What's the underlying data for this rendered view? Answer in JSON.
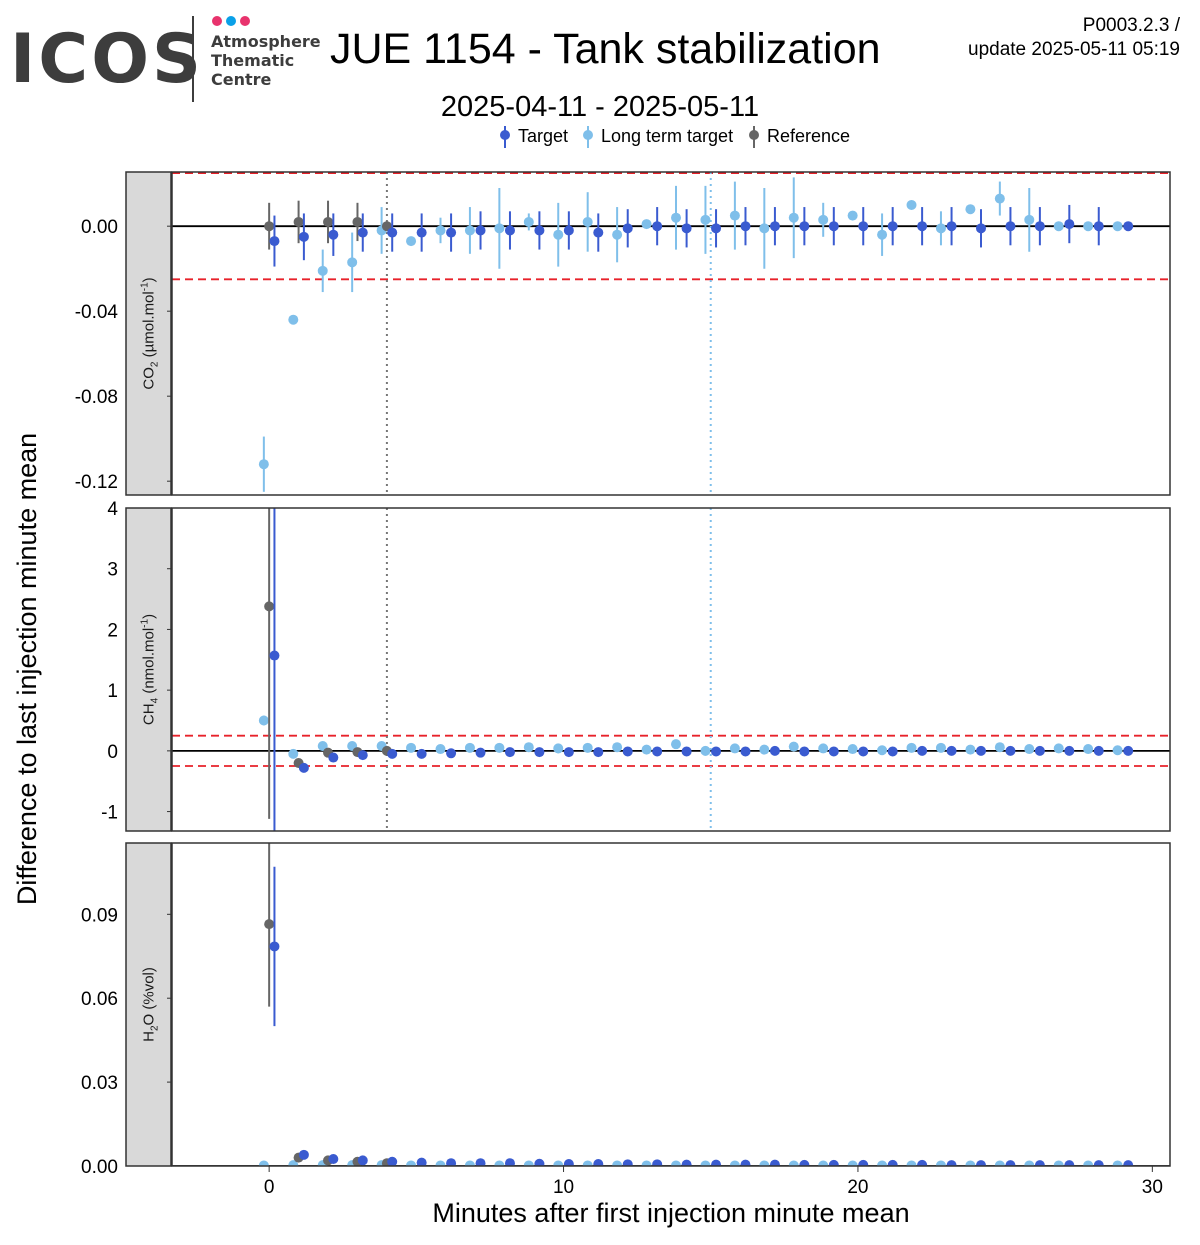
{
  "header": {
    "logo_text": "ICOS",
    "logo_line1": "Atmosphere",
    "logo_line2": "Thematic",
    "logo_line3": "Centre",
    "logo_dot_colors": [
      "#e8336d",
      "#0aa0e8",
      "#e8336d"
    ],
    "title": "JUE 1154 - Tank stabilization",
    "version": "P0003.2.3 /",
    "update": "update  2025-05-11 05:19",
    "date_range": "2025-04-11 - 2025-05-11"
  },
  "chart_data": {
    "type": "scatter",
    "xlabel": "Minutes after first injection minute mean",
    "ylabel": "Difference to last injection minute mean",
    "xlim": [
      -3.3,
      30.6
    ],
    "x_ticks": [
      0,
      10,
      20,
      30
    ],
    "x_tick_labels": [
      "0",
      "10",
      "20",
      "30"
    ],
    "legend": {
      "placement": "top-center",
      "entries": [
        {
          "label": "Target",
          "color": "#3a5bd0"
        },
        {
          "label": "Long term target",
          "color": "#7fbfea"
        },
        {
          "label": "Reference",
          "color": "#666666"
        }
      ]
    },
    "vlines": [
      {
        "x": 4,
        "color": "#777777",
        "style": "dotted"
      },
      {
        "x": 15,
        "color": "#7fbfea",
        "style": "dotted"
      }
    ],
    "panels": [
      {
        "strip_label": "CO2 (µmol.mol-1)",
        "strip_main": "CO",
        "strip_sub": "2",
        "strip_rest": " (µmol.mol",
        "strip_sup": "-1",
        "strip_end": ")",
        "ylim": [
          -0.1265,
          0.0255
        ],
        "y_ticks": [
          0.0,
          -0.04,
          -0.08,
          -0.12
        ],
        "y_tick_labels": [
          "0.00",
          "-0.04",
          "-0.08",
          "-0.12"
        ],
        "hlines": [
          0.025,
          -0.025
        ],
        "series": [
          {
            "name": "Target",
            "color": "#3a5bd0",
            "x": [
              0,
              1,
              2,
              3,
              4,
              5,
              6,
              7,
              8,
              9,
              10,
              11,
              12,
              13,
              14,
              15,
              16,
              17,
              18,
              19,
              20,
              21,
              22,
              23,
              24,
              25,
              26,
              27,
              28,
              29
            ],
            "y": [
              -0.007,
              -0.005,
              -0.004,
              -0.003,
              -0.003,
              -0.003,
              -0.003,
              -0.002,
              -0.002,
              -0.002,
              -0.002,
              -0.003,
              -0.001,
              0.0,
              -0.001,
              -0.001,
              0.0,
              0.0,
              0.0,
              0.0,
              0.0,
              0.0,
              0.0,
              0.0,
              -0.001,
              0.0,
              0.0,
              0.001,
              0.0,
              0.0
            ],
            "err": [
              0.012,
              0.011,
              0.01,
              0.009,
              0.009,
              0.009,
              0.009,
              0.009,
              0.009,
              0.009,
              0.009,
              0.009,
              0.009,
              0.009,
              0.009,
              0.009,
              0.009,
              0.009,
              0.009,
              0.009,
              0.009,
              0.009,
              0.009,
              0.009,
              0.009,
              0.009,
              0.009,
              0.009,
              0.009,
              0.0
            ]
          },
          {
            "name": "Long term target",
            "color": "#7fbfea",
            "x": [
              0,
              1,
              2,
              3,
              4,
              5,
              6,
              7,
              8,
              9,
              10,
              11,
              12,
              13,
              14,
              15,
              16,
              17,
              18,
              19,
              20,
              21,
              22,
              23,
              24,
              25,
              26,
              27,
              28,
              29
            ],
            "y": [
              -0.112,
              -0.044,
              -0.021,
              -0.017,
              -0.002,
              -0.007,
              -0.002,
              -0.002,
              -0.001,
              0.002,
              -0.004,
              0.002,
              -0.004,
              0.001,
              0.004,
              0.003,
              0.005,
              -0.001,
              0.004,
              0.003,
              0.005,
              -0.004,
              0.01,
              -0.001,
              0.008,
              0.013,
              0.003,
              0.0,
              0.0,
              0.0
            ],
            "err": [
              0.013,
              0.0,
              0.01,
              0.014,
              0.011,
              0.0,
              0.006,
              0.011,
              0.019,
              0.004,
              0.015,
              0.014,
              0.013,
              0.0,
              0.015,
              0.016,
              0.016,
              0.019,
              0.019,
              0.008,
              0.0,
              0.01,
              0.0,
              0.008,
              0.0,
              0.008,
              0.015,
              0.0,
              0.0,
              0.0
            ]
          },
          {
            "name": "Reference",
            "color": "#666666",
            "x": [
              0,
              1,
              2,
              3,
              4
            ],
            "y": [
              0.0,
              0.002,
              0.002,
              0.002,
              0.0
            ],
            "err": [
              0.011,
              0.01,
              0.01,
              0.009,
              0.0
            ]
          }
        ]
      },
      {
        "strip_label": "CH4 (nmol.mol-1)",
        "strip_main": "CH",
        "strip_sub": "4",
        "strip_rest": " (nmol.mol",
        "strip_sup": "-1",
        "strip_end": ")",
        "ylim": [
          -1.32,
          4.0
        ],
        "y_ticks": [
          4,
          3,
          2,
          1,
          0,
          -1
        ],
        "y_tick_labels": [
          "4",
          "3",
          "2",
          "1",
          "0",
          "-1"
        ],
        "hlines": [
          0.25,
          -0.25
        ],
        "series": [
          {
            "name": "Target",
            "color": "#3a5bd0",
            "x": [
              0,
              1,
              2,
              3,
              4,
              5,
              6,
              7,
              8,
              9,
              10,
              11,
              12,
              13,
              14,
              15,
              16,
              17,
              18,
              19,
              20,
              21,
              22,
              23,
              24,
              25,
              26,
              27,
              28,
              29
            ],
            "y": [
              1.57,
              -0.28,
              -0.11,
              -0.07,
              -0.05,
              -0.05,
              -0.04,
              -0.03,
              -0.02,
              -0.02,
              -0.02,
              -0.02,
              -0.01,
              -0.01,
              -0.01,
              -0.01,
              -0.01,
              0.0,
              -0.01,
              -0.01,
              -0.01,
              -0.01,
              0.0,
              0.0,
              0.0,
              0.0,
              0.0,
              0.0,
              0.0,
              0.0
            ],
            "err": [
              2.9,
              0.05,
              0.05,
              0.05,
              0.05,
              0.05,
              0.05,
              0.05,
              0.05,
              0.05,
              0.05,
              0.05,
              0.05,
              0.05,
              0.05,
              0.05,
              0.05,
              0.05,
              0.05,
              0.05,
              0.05,
              0.05,
              0.05,
              0.05,
              0.05,
              0.05,
              0.05,
              0.05,
              0.05,
              0.0
            ]
          },
          {
            "name": "Long term target",
            "color": "#7fbfea",
            "x": [
              0,
              1,
              2,
              3,
              4,
              5,
              6,
              7,
              8,
              9,
              10,
              11,
              12,
              13,
              14,
              15,
              16,
              17,
              18,
              19,
              20,
              21,
              22,
              23,
              24,
              25,
              26,
              27,
              28,
              29
            ],
            "y": [
              0.5,
              -0.05,
              0.08,
              0.08,
              0.08,
              0.05,
              0.03,
              0.05,
              0.05,
              0.06,
              0.04,
              0.05,
              0.06,
              0.02,
              0.11,
              0.0,
              0.04,
              0.02,
              0.07,
              0.04,
              0.03,
              0.01,
              0.05,
              0.05,
              0.02,
              0.06,
              0.03,
              0.04,
              0.03,
              0.01
            ],
            "err": [
              0.08,
              0.06,
              0.05,
              0.05,
              0.05,
              0.05,
              0.05,
              0.05,
              0.05,
              0.05,
              0.08,
              0.05,
              0.05,
              0.05,
              0.05,
              0.08,
              0.05,
              0.05,
              0.05,
              0.05,
              0.05,
              0.05,
              0.05,
              0.05,
              0.05,
              0.05,
              0.05,
              0.05,
              0.05,
              0.0
            ]
          },
          {
            "name": "Reference",
            "color": "#666666",
            "x": [
              0,
              1,
              2,
              3,
              4
            ],
            "y": [
              2.38,
              -0.2,
              -0.03,
              -0.02,
              0.0
            ],
            "err": [
              3.5,
              0.05,
              0.05,
              0.05,
              0.0
            ]
          }
        ]
      },
      {
        "strip_label": "H2O (%vol)",
        "strip_main": "H",
        "strip_sub": "2",
        "strip_rest": "O (%vol)",
        "strip_sup": "",
        "strip_end": "",
        "ylim": [
          0.0,
          0.1155
        ],
        "y_ticks": [
          0.09,
          0.06,
          0.03,
          0.0
        ],
        "y_tick_labels": [
          "0.09",
          "0.06",
          "0.03",
          "0.00"
        ],
        "hlines": [],
        "series": [
          {
            "name": "Target",
            "color": "#3a5bd0",
            "x": [
              0,
              1,
              2,
              3,
              4,
              5,
              6,
              7,
              8,
              9,
              10,
              11,
              12,
              13,
              14,
              15,
              16,
              17,
              18,
              19,
              20,
              21,
              22,
              23,
              24,
              25,
              26,
              27,
              28,
              29
            ],
            "y": [
              0.0785,
              0.004,
              0.0025,
              0.002,
              0.0015,
              0.0012,
              0.001,
              0.001,
              0.001,
              0.0008,
              0.0007,
              0.0007,
              0.0006,
              0.0006,
              0.0005,
              0.0005,
              0.0005,
              0.0005,
              0.0004,
              0.0004,
              0.0004,
              0.0004,
              0.0004,
              0.0003,
              0.0003,
              0.0003,
              0.0003,
              0.0003,
              0.0003,
              0.0003
            ],
            "err": [
              0.0285,
              0.0,
              0.0,
              0.0,
              0.0,
              0.0,
              0.0,
              0.0,
              0.0,
              0.0,
              0.0,
              0.0,
              0.0,
              0.0,
              0.0,
              0.0,
              0.0,
              0.0,
              0.0,
              0.0,
              0.0,
              0.0,
              0.0,
              0.0,
              0.0,
              0.0,
              0.0,
              0.0,
              0.0,
              0.0
            ]
          },
          {
            "name": "Long term target",
            "color": "#7fbfea",
            "x": [
              0,
              1,
              2,
              3,
              4,
              5,
              6,
              7,
              8,
              9,
              10,
              11,
              12,
              13,
              14,
              15,
              16,
              17,
              18,
              19,
              20,
              21,
              22,
              23,
              24,
              25,
              26,
              27,
              28,
              29
            ],
            "y": [
              0.0002,
              0.0003,
              0.0003,
              0.0003,
              0.0003,
              0.0002,
              0.0002,
              0.0002,
              0.0002,
              0.0002,
              0.0002,
              0.0002,
              0.0002,
              0.0002,
              0.0002,
              0.0002,
              0.0002,
              0.0002,
              0.0002,
              0.0002,
              0.0002,
              0.0002,
              0.0002,
              0.0002,
              0.0002,
              0.0002,
              0.0002,
              0.0002,
              0.0002,
              0.0002
            ],
            "err": [
              0.0,
              0.0,
              0.0,
              0.0,
              0.0,
              0.0,
              0.0,
              0.0,
              0.0,
              0.0,
              0.0,
              0.0,
              0.0,
              0.0,
              0.0,
              0.0,
              0.0,
              0.0,
              0.0,
              0.0,
              0.0,
              0.0,
              0.0,
              0.0,
              0.0,
              0.0,
              0.0,
              0.0,
              0.0,
              0.0
            ]
          },
          {
            "name": "Reference",
            "color": "#666666",
            "x": [
              0,
              1,
              2,
              3,
              4
            ],
            "y": [
              0.0865,
              0.003,
              0.002,
              0.0015,
              0.001
            ],
            "err": [
              0.0295,
              0.0,
              0.0,
              0.0,
              0.0
            ]
          }
        ]
      }
    ]
  }
}
